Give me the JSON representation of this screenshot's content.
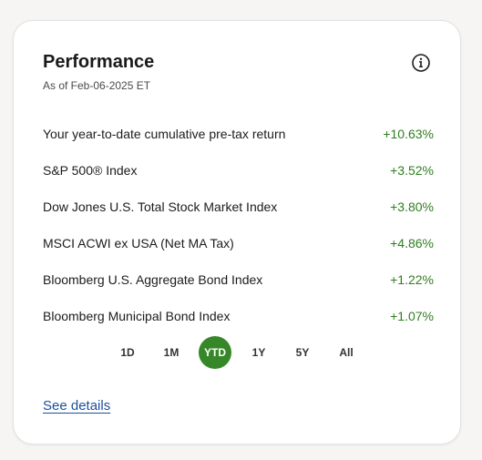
{
  "performance": {
    "title": "Performance",
    "as_of": "As of Feb-06-2025 ET",
    "info_icon": "info-circle-icon",
    "rows": [
      {
        "label": "Your year-to-date cumulative pre-tax return",
        "value": "+10.63%"
      },
      {
        "label": "S&P 500® Index",
        "value": "+3.52%"
      },
      {
        "label": "Dow Jones U.S. Total Stock Market Index",
        "value": "+3.80%"
      },
      {
        "label": "MSCI ACWI ex USA (Net MA Tax)",
        "value": "+4.86%"
      },
      {
        "label": "Bloomberg U.S. Aggregate Bond Index",
        "value": "+1.22%"
      },
      {
        "label": "Bloomberg Municipal Bond Index",
        "value": "+1.07%"
      }
    ],
    "periods": [
      {
        "label": "1D"
      },
      {
        "label": "1M"
      },
      {
        "label": "YTD"
      },
      {
        "label": "1Y"
      },
      {
        "label": "5Y"
      },
      {
        "label": "All"
      }
    ],
    "selected_period": "YTD",
    "see_details": "See details",
    "colors": {
      "positive": "#2f7d1f",
      "accent": "#368727",
      "link": "#1e4f9c"
    }
  }
}
